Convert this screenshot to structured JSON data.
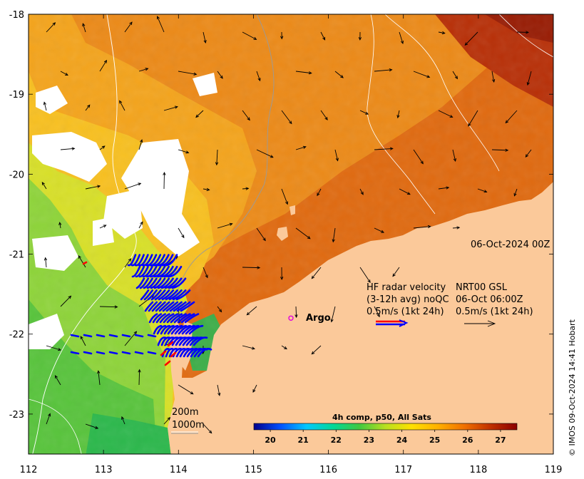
{
  "map": {
    "lon_min": 112,
    "lon_max": 119,
    "lat_min": -23.5,
    "lat_max": -18,
    "x_ticks": [
      "112",
      "113",
      "114",
      "115",
      "116",
      "117",
      "118",
      "119"
    ],
    "y_ticks": [
      "-18",
      "-19",
      "-20",
      "-21",
      "-22",
      "-23"
    ],
    "date_label": "06-Oct-2024 00Z",
    "land_color": "#fbc99a",
    "argo": {
      "label": "Argo",
      "lon": 115.5,
      "lat": -21.8,
      "color": "#e000e0"
    }
  },
  "legend": {
    "line1_left": "HF radar velocity",
    "line1_right": "NRT00 GSL",
    "line2_left": "(3-12h avg) noQC",
    "line2_right": "06-Oct 06:00Z",
    "line3_left": "0.5m/s (1kt 24h)",
    "line3_right": "0.5m/s (1kt 24h)",
    "radar_colors": [
      "#ff0000",
      "#0000ff"
    ]
  },
  "bathymetry": {
    "contour_1": "200m",
    "contour_2": "1000m"
  },
  "colorbar": {
    "title": "4h comp, p50, All Sats",
    "min": 19.5,
    "max": 27.5,
    "ticks": [
      "20",
      "21",
      "22",
      "23",
      "24",
      "25",
      "26",
      "27"
    ],
    "colors": [
      "#00008b",
      "#0050ff",
      "#00c8ff",
      "#00d898",
      "#40c840",
      "#b8e020",
      "#ffe000",
      "#ffb000",
      "#f07000",
      "#c03000",
      "#8b0000"
    ]
  },
  "credit": "© IMOS 09-Oct-2024 14:41 Hobart"
}
